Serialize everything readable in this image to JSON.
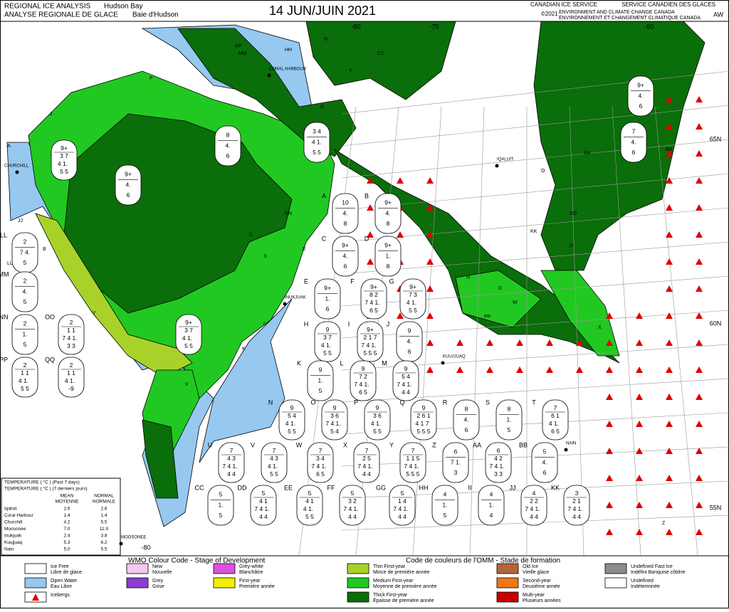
{
  "header": {
    "title_en": "REGIONAL ICE ANALYSIS",
    "region_en": "Hudson Bay",
    "title_fr": "ANALYSE REGIONALE DE GLACE",
    "region_fr": "Baie d'Hudson",
    "date": "14 JUN/JUIN 2021",
    "agency_en": "CANADIAN ICE SERVICE",
    "agency_fr": "SERVICE CANADIEN DES GLACES",
    "copyright": "©2021",
    "dept_en": "ENVIRONMENT AND CLIMATE CHANGE CANADA",
    "dept_fr": "ENVIRONNEMENT ET CHANGEMENT CLIMATIQUE CANADA",
    "analyst": "AW"
  },
  "graticule": [
    "-80",
    "-75",
    "-60",
    "65N",
    "60N",
    "55N",
    "-80"
  ],
  "places": [
    "CORAL HARBOUR",
    "IQALUIT",
    "INUKJUAK",
    "KUUJJUAQ",
    "CHURCHILL",
    "MOOSONEE",
    "NAIN"
  ],
  "map_labels": [
    "A",
    "B",
    "JJ",
    "J",
    "PP",
    "P",
    "MM",
    "HH",
    "N",
    "CC",
    "T",
    "G",
    "E",
    "S",
    "NN",
    "H",
    "D",
    "W",
    "PP",
    "K",
    "Y",
    "V",
    "O",
    "DD",
    "AA",
    "BB",
    "KK",
    "X",
    "U",
    "Z",
    "C",
    "I",
    "LL"
  ],
  "eggs": [
    {
      "id": "A",
      "lines": [
        "10",
        "4.",
        "8"
      ]
    },
    {
      "id": "B",
      "lines": [
        "9+",
        "4.",
        "8"
      ]
    },
    {
      "id": "C",
      "lines": [
        "9+",
        "4.",
        "6"
      ]
    },
    {
      "id": "D",
      "lines": [
        "9+",
        "1.",
        "8"
      ]
    },
    {
      "id": "E",
      "lines": [
        "9+",
        "1.",
        "6"
      ]
    },
    {
      "id": "F",
      "lines": [
        "9+",
        "8 2",
        "7 4 1.",
        "6 5"
      ]
    },
    {
      "id": "G",
      "lines": [
        "9+",
        "7 3",
        "4 1.",
        "5 5"
      ]
    },
    {
      "id": "H",
      "lines": [
        "9",
        "3 7",
        "4 1.",
        "5 5"
      ]
    },
    {
      "id": "I",
      "lines": [
        "9+",
        "2 1 7",
        "7 4 1.",
        "5 5 5"
      ]
    },
    {
      "id": "J",
      "lines": [
        "9",
        "4.",
        "6"
      ]
    },
    {
      "id": "K",
      "lines": [
        "9",
        "1.",
        "5"
      ]
    },
    {
      "id": "L",
      "lines": [
        "9",
        "7 2",
        "7 4 1.",
        "6 5"
      ]
    },
    {
      "id": "M",
      "lines": [
        "9",
        "5 4",
        "7 4 1.",
        "4 4"
      ]
    },
    {
      "id": "N",
      "lines": [
        "9",
        "5 4",
        "4 1.",
        "5 5"
      ]
    },
    {
      "id": "O",
      "lines": [
        "9",
        "3 6",
        "7 4 1.",
        "5 4"
      ]
    },
    {
      "id": "P",
      "lines": [
        "9",
        "3 6",
        "4 1.",
        "5 5"
      ]
    },
    {
      "id": "Q",
      "lines": [
        "9",
        "2 6 1",
        "4 1 7",
        "5 5 5"
      ]
    },
    {
      "id": "R",
      "lines": [
        "8",
        "4.",
        "6"
      ]
    },
    {
      "id": "S",
      "lines": [
        "8",
        "1.",
        "5"
      ]
    },
    {
      "id": "T",
      "lines": [
        "7",
        "6 1",
        "4 1.",
        "6 5"
      ]
    },
    {
      "id": "U",
      "lines": [
        "7",
        "4 3",
        "7 4 1.",
        "4 4"
      ]
    },
    {
      "id": "V",
      "lines": [
        "7",
        "4 3",
        "4 1.",
        "5 5"
      ]
    },
    {
      "id": "W",
      "lines": [
        "7",
        "3 4",
        "7 4 1.",
        "6 5"
      ]
    },
    {
      "id": "X",
      "lines": [
        "7",
        "2 5",
        "7 4 1.",
        "4 4"
      ]
    },
    {
      "id": "Y",
      "lines": [
        "7",
        "1 1 5",
        "7 4 1.",
        "5 5 5"
      ]
    },
    {
      "id": "Z",
      "lines": [
        "6",
        "7 1.",
        "3"
      ]
    },
    {
      "id": "AA",
      "lines": [
        "6",
        "4 2",
        "7 4 1.",
        "3 3"
      ]
    },
    {
      "id": "BB",
      "lines": [
        "5",
        "4.",
        "6"
      ]
    },
    {
      "id": "CC",
      "lines": [
        "5",
        "1.",
        "5"
      ]
    },
    {
      "id": "DD",
      "lines": [
        "5",
        "4 1",
        "7 4 1.",
        "4 4"
      ]
    },
    {
      "id": "EE",
      "lines": [
        "5",
        "4 1",
        "4 1.",
        "5 5"
      ]
    },
    {
      "id": "FF",
      "lines": [
        "5",
        "3 2",
        "7 4 1.",
        "4 4"
      ]
    },
    {
      "id": "GG",
      "lines": [
        "5",
        "1 4",
        "7 4 1.",
        "4 4"
      ]
    },
    {
      "id": "HH",
      "lines": [
        "4",
        "1.",
        "5"
      ]
    },
    {
      "id": "II",
      "lines": [
        "4",
        "1.",
        "4"
      ]
    },
    {
      "id": "JJ",
      "lines": [
        "4",
        "2 2",
        "7 4 1.",
        "4 4"
      ]
    },
    {
      "id": "KK",
      "lines": [
        "3",
        "2 1",
        "7 4 1.",
        "4 4"
      ]
    },
    {
      "id": "LL",
      "lines": [
        "2",
        "7 4.",
        "5"
      ]
    },
    {
      "id": "MM",
      "lines": [
        "2",
        "4.",
        "5"
      ]
    },
    {
      "id": "NN",
      "lines": [
        "2",
        "1.",
        "5"
      ]
    },
    {
      "id": "OO",
      "lines": [
        "2",
        "1 1",
        "7 4 1.",
        "3 3"
      ]
    },
    {
      "id": "PP",
      "lines": [
        "2",
        "1 1",
        "4 1.",
        "5 5"
      ]
    },
    {
      "id": "QQ",
      "lines": [
        "2",
        "1 1",
        "4 1.",
        "-9"
      ]
    },
    {
      "lines": [
        "9+",
        "3 7",
        "4 1.",
        "5 5"
      ]
    },
    {
      "lines": [
        "9+",
        "4.",
        "6"
      ]
    },
    {
      "lines": [
        "8",
        "4.",
        "6"
      ]
    },
    {
      "lines": [
        "3 4",
        "4 1.",
        "5 5"
      ]
    },
    {
      "lines": [
        "9+",
        "4.",
        "6"
      ]
    },
    {
      "lines": [
        "7",
        "4.",
        "6"
      ]
    },
    {
      "lines": [
        "9+",
        "3 7",
        "4 1.",
        "5 5"
      ]
    }
  ],
  "temperature": {
    "title_en": "TEMPERATURE ( °C )     (Past 7 days)",
    "title_fr": "TEMPERATURE ( °C )     (7 derniers jours)",
    "col_mean": [
      "MEAN",
      "MOYENNE"
    ],
    "col_normal": [
      "NORMAL",
      "NORMALE"
    ],
    "rows": [
      [
        "Iqaluit",
        "2.6",
        "2.6"
      ],
      [
        "Coral Harbour",
        "1.4",
        "1.4"
      ],
      [
        "Churchill",
        "4.2",
        "5.5"
      ],
      [
        "Moosonee",
        "7.0",
        "11.9"
      ],
      [
        "Inukjuak",
        "2.4",
        "3.8"
      ],
      [
        "Kuujjuaq",
        "5.3",
        "6.2"
      ],
      [
        "Nain",
        "5.0",
        "5.5"
      ]
    ]
  },
  "legend": {
    "title_en": "WMO Colour Code - Stage of Development",
    "title_fr": "Code de couleurs de l'OMM - Stade de formation",
    "items": [
      {
        "en": "Ice Free",
        "fr": "Libre de glace",
        "color": "#ffffff"
      },
      {
        "en": "Open Water",
        "fr": "Eau Libre",
        "color": "#96c8f0"
      },
      {
        "en": "Icebergs",
        "fr": "",
        "color": "#e00000"
      },
      {
        "en": "New",
        "fr": "Nouvelle",
        "color": "#f5c8f0"
      },
      {
        "en": "Grey",
        "fr": "Grise",
        "color": "#8c3cd2"
      },
      {
        "en": "Grey-white",
        "fr": "Blanchâtre",
        "color": "#dc50dc"
      },
      {
        "en": "First-year",
        "fr": "Première année",
        "color": "#f0f000"
      },
      {
        "en": "Thin First-year",
        "fr": "Mince de première année",
        "color": "#a8d22a"
      },
      {
        "en": "Medium First-year",
        "fr": "Moyenne de première année",
        "color": "#22c822"
      },
      {
        "en": "Thick First-year",
        "fr": "Épaisse de première année",
        "color": "#0a6e0a"
      },
      {
        "en": "Old Ice",
        "fr": "Vieille glace",
        "color": "#b4643c"
      },
      {
        "en": "Second-year",
        "fr": "Deuxième année",
        "color": "#f07814"
      },
      {
        "en": "Multi-year",
        "fr": "Plusieurs années",
        "color": "#c80000"
      },
      {
        "en": "Undefined Fast Ice",
        "fr": "Indéfini Banquise côtière",
        "color": "#8c8c8c"
      },
      {
        "en": "Undefined",
        "fr": "Indéterminée",
        "color": "#ffffff"
      }
    ]
  }
}
